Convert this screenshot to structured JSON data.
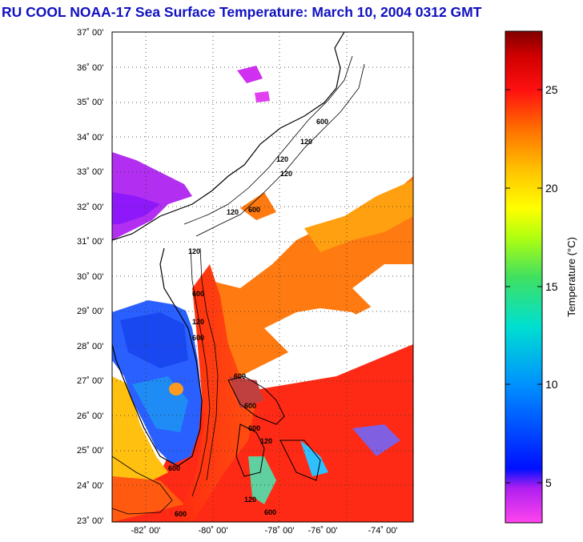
{
  "title": "RU COOL  NOAA-17  Sea Surface Temperature:  March 10, 2004 0312 GMT",
  "map": {
    "lat_labels": [
      "37˚ 00'",
      "36˚ 00'",
      "35˚ 00'",
      "34˚ 00'",
      "33˚ 00'",
      "32˚ 00'",
      "31˚ 00'",
      "30˚ 00'",
      "29˚ 00'",
      "28˚ 00'",
      "27˚ 00'",
      "26˚ 00'",
      "25˚ 00'",
      "24˚ 00'",
      "23˚ 00'"
    ],
    "lon_labels": [
      "-82˚ 00'",
      "-80˚ 00'",
      "-78˚ 00'",
      "-76˚ 00'",
      "-74˚ 00'"
    ],
    "lat_range": [
      23,
      37
    ],
    "lon_range": [
      -83.5,
      -74.5
    ],
    "contour_labels": [
      "600",
      "120",
      "120",
      "600",
      "120",
      "600",
      "120",
      "600",
      "120",
      "600",
      "600",
      "600",
      "120",
      "600",
      "120",
      "600",
      "600",
      "120"
    ]
  },
  "colorbar": {
    "label": "Temperature (°C)",
    "ticks": [
      5,
      10,
      15,
      20,
      25
    ],
    "range": [
      3,
      28.3
    ],
    "colors": [
      "#ff3ce6",
      "#a020f0",
      "#0010ff",
      "#0080ff",
      "#00e0e0",
      "#40e080",
      "#c0ff00",
      "#ffff00",
      "#ffc000",
      "#ff8000",
      "#ff2010",
      "#e00000",
      "#800000"
    ]
  }
}
